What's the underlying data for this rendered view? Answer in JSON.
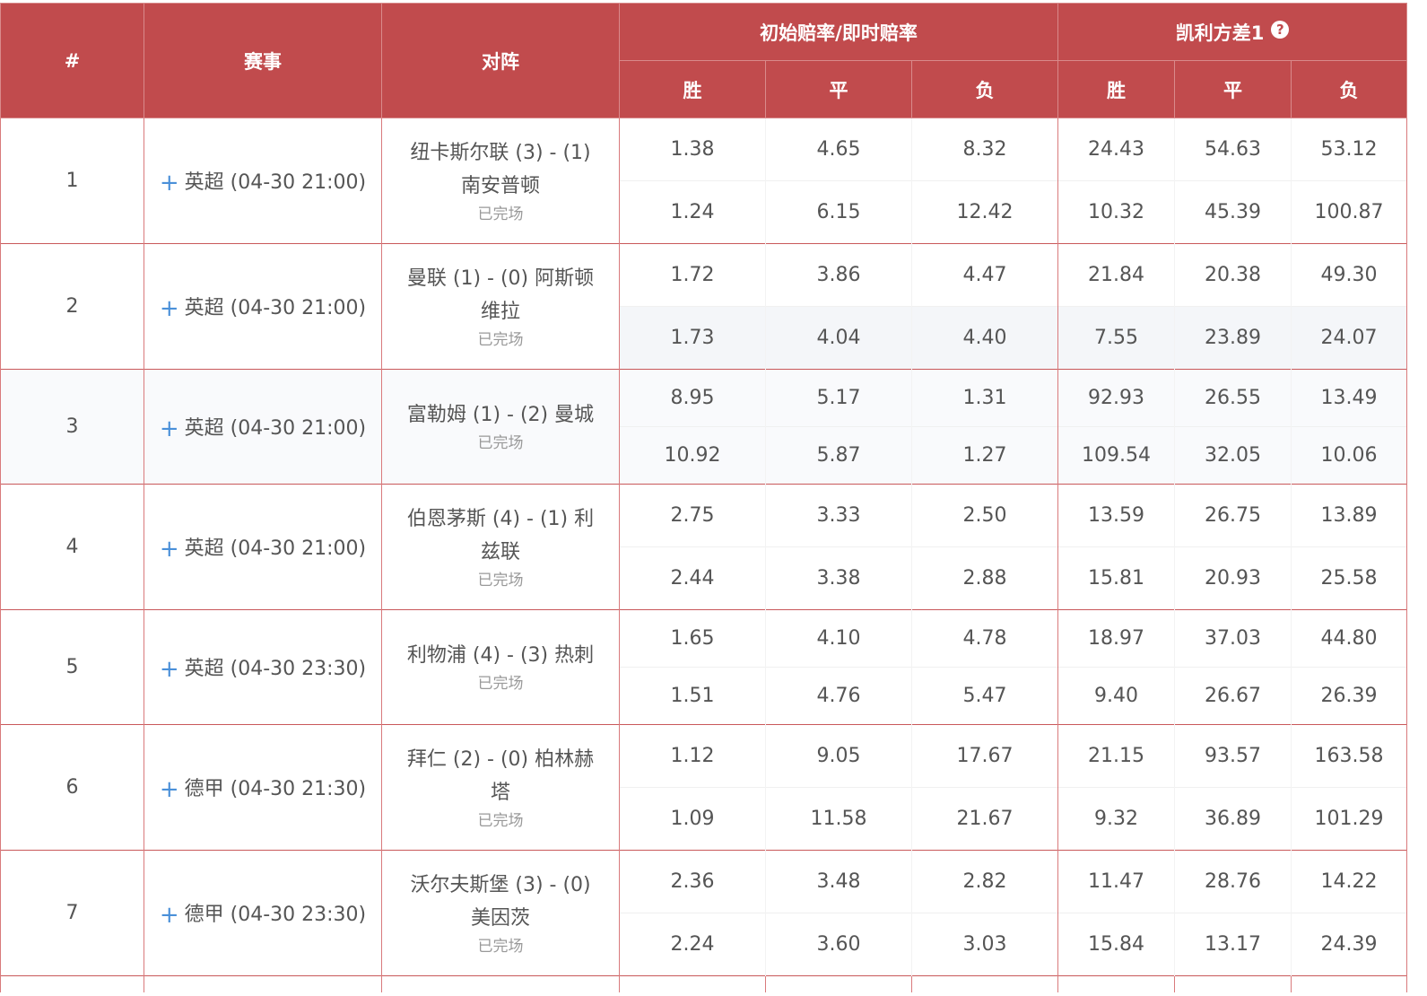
{
  "header": {
    "index": "#",
    "league": "赛事",
    "match": "对阵",
    "odds_group": "初始赔率/即时赔率",
    "kelly_group": "凯利方差1",
    "help": "?",
    "win": "胜",
    "draw": "平",
    "lose": "负"
  },
  "rows": [
    {
      "idx": "1",
      "league": "英超 (04-30 21:00)",
      "match": "纽卡斯尔联 (3) - (1) 南安普顿",
      "status": "已完场",
      "init": [
        "1.38",
        "4.65",
        "8.32"
      ],
      "live": [
        "1.24",
        "6.15",
        "12.42"
      ],
      "kelly_init": [
        "24.43",
        "54.63",
        "53.12"
      ],
      "kelly_live": [
        "10.32",
        "45.39",
        "100.87"
      ]
    },
    {
      "idx": "2",
      "league": "英超 (04-30 21:00)",
      "match": "曼联 (1) - (0) 阿斯顿维拉",
      "status": "已完场",
      "init": [
        "1.72",
        "3.86",
        "4.47"
      ],
      "live": [
        "1.73",
        "4.04",
        "4.40"
      ],
      "kelly_init": [
        "21.84",
        "20.38",
        "49.30"
      ],
      "kelly_live": [
        "7.55",
        "23.89",
        "24.07"
      ]
    },
    {
      "idx": "3",
      "league": "英超 (04-30 21:00)",
      "match": "富勒姆 (1) - (2) 曼城",
      "status": "已完场",
      "init": [
        "8.95",
        "5.17",
        "1.31"
      ],
      "live": [
        "10.92",
        "5.87",
        "1.27"
      ],
      "kelly_init": [
        "92.93",
        "26.55",
        "13.49"
      ],
      "kelly_live": [
        "109.54",
        "32.05",
        "10.06"
      ]
    },
    {
      "idx": "4",
      "league": "英超 (04-30 21:00)",
      "match": "伯恩茅斯 (4) - (1) 利兹联",
      "status": "已完场",
      "init": [
        "2.75",
        "3.33",
        "2.50"
      ],
      "live": [
        "2.44",
        "3.38",
        "2.88"
      ],
      "kelly_init": [
        "13.59",
        "26.75",
        "13.89"
      ],
      "kelly_live": [
        "15.81",
        "20.93",
        "25.58"
      ]
    },
    {
      "idx": "5",
      "league": "英超 (04-30 23:30)",
      "match": "利物浦 (4) - (3) 热刺",
      "status": "已完场",
      "init": [
        "1.65",
        "4.10",
        "4.78"
      ],
      "live": [
        "1.51",
        "4.76",
        "5.47"
      ],
      "kelly_init": [
        "18.97",
        "37.03",
        "44.80"
      ],
      "kelly_live": [
        "9.40",
        "26.67",
        "26.39"
      ]
    },
    {
      "idx": "6",
      "league": "德甲 (04-30 21:30)",
      "match": "拜仁 (2) - (0) 柏林赫塔",
      "status": "已完场",
      "init": [
        "1.12",
        "9.05",
        "17.67"
      ],
      "live": [
        "1.09",
        "11.58",
        "21.67"
      ],
      "kelly_init": [
        "21.15",
        "93.57",
        "163.58"
      ],
      "kelly_live": [
        "9.32",
        "36.89",
        "101.29"
      ]
    },
    {
      "idx": "7",
      "league": "德甲 (04-30 23:30)",
      "match": "沃尔夫斯堡 (3) - (0) 美因茨",
      "status": "已完场",
      "init": [
        "2.36",
        "3.48",
        "2.82"
      ],
      "live": [
        "2.24",
        "3.60",
        "3.03"
      ],
      "kelly_init": [
        "11.47",
        "28.76",
        "14.22"
      ],
      "kelly_live": [
        "15.84",
        "13.17",
        "24.39"
      ]
    }
  ]
}
